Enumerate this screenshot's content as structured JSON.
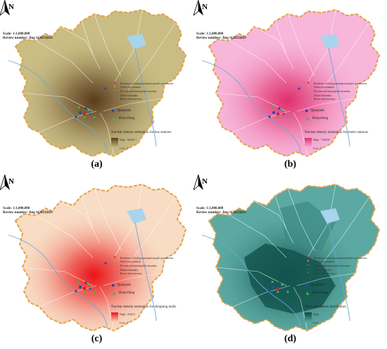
{
  "north_label": "N",
  "scale_text": "Scale: 1:1,000,000",
  "review_text": "Review number: Jing S(2021)023",
  "legend": {
    "residence": "Residence of beijing municipal people's government",
    "district_gov": "District government",
    "boundary": "Provines and municipality boundary",
    "district_boundary": "District boundary",
    "rivers": "Rivers and reservoirs",
    "quanjude": "Quanjude",
    "bianyifang": "Bianyifang"
  },
  "colors": {
    "bus": "#6b4f2c",
    "metro": "#e8317a",
    "mall": "#e8171b",
    "pop": "#0d5650"
  },
  "panels": [
    {
      "id": "a",
      "caption": "(a)",
      "kd_title": "Nuclear density estimation for bus stations",
      "high": "High : 66263.1",
      "low": "Low : 0",
      "base": "#c9bd84",
      "hot": "#5a3b1c"
    },
    {
      "id": "b",
      "caption": "(b)",
      "kd_title": "Nuclear density estimation for metro stations",
      "high": "High : 7140.82",
      "low": "Low : 0",
      "base": "#f7b6da",
      "hot": "#e02f6c"
    },
    {
      "id": "c",
      "caption": "(c)",
      "kd_title": "Nuclear density estimation for shopping malls",
      "high": "High : 2242.5",
      "low": "Low : 0",
      "base": "#f8dcc4",
      "hot": "#e81216"
    },
    {
      "id": "d",
      "caption": "(d)",
      "kd_title": "Street population distribution",
      "high": "High",
      "low": "Low",
      "base": "#5ba9a2",
      "hot": "#0a4a44"
    }
  ]
}
